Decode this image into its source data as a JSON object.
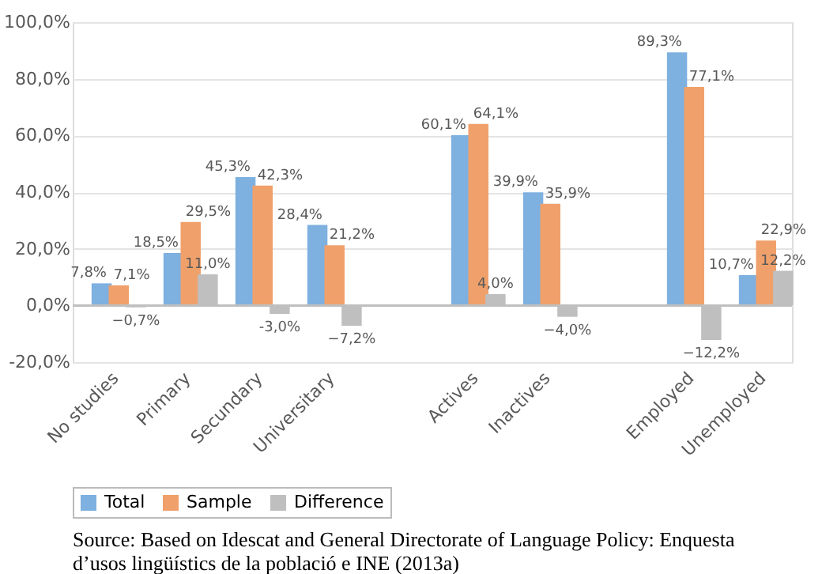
{
  "chart_data": {
    "type": "bar",
    "categories": [
      "No studies",
      "Primary",
      "Secundary",
      "Universitary",
      null,
      "Actives",
      "Inactives",
      null,
      "Employed",
      "Unemployed"
    ],
    "series": [
      {
        "name": "Total",
        "color": "#7eb0e0",
        "values": [
          7.8,
          18.5,
          45.3,
          28.4,
          null,
          60.1,
          39.9,
          null,
          89.3,
          10.7
        ],
        "value_labels": [
          "7,8%",
          "18,5%",
          "45,3%",
          "28,4%",
          null,
          "60,1%",
          "39,9%",
          null,
          "89,3%",
          "10,7%"
        ]
      },
      {
        "name": "Sample",
        "color": "#f0a06a",
        "values": [
          7.1,
          29.5,
          42.3,
          21.2,
          null,
          64.1,
          35.9,
          null,
          77.1,
          22.9
        ],
        "value_labels": [
          "7,1%",
          "29,5%",
          "42,3%",
          "21,2%",
          null,
          "64,1%",
          "35,9%",
          null,
          "77,1%",
          "22,9%"
        ]
      },
      {
        "name": "Difference",
        "color": "#bfbfbf",
        "values": [
          -0.7,
          11.0,
          -3.0,
          -7.2,
          null,
          4.0,
          -4.0,
          null,
          -12.2,
          12.2
        ],
        "value_labels": [
          "−0,7%",
          "11,0%",
          "-3,0%",
          "−7,2%",
          null,
          "4,0%",
          "−4,0%",
          null,
          "−12,2%",
          "12,2%"
        ]
      }
    ],
    "ylim": [
      -20,
      100
    ],
    "yticks": [
      {
        "value": -20,
        "label": "-20,0%"
      },
      {
        "value": 0,
        "label": "0,0%"
      },
      {
        "value": 20,
        "label": "20,0%"
      },
      {
        "value": 40,
        "label": "40,0%"
      },
      {
        "value": 60,
        "label": "60,0%"
      },
      {
        "value": 80,
        "label": "80,0%"
      },
      {
        "value": 100,
        "label": "100,0%"
      }
    ],
    "grid": "y",
    "legend": "bottom",
    "annotations": [
      "Source: Based on Idescat and General Directorate of Language Policy: Enquesta d’usos lingüístics de la població e INE (2013a)"
    ]
  }
}
